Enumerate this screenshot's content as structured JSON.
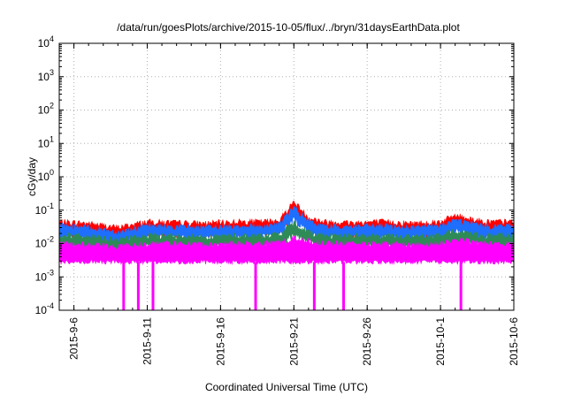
{
  "chart_data": {
    "type": "line",
    "title": "/data/run/goesPlots/archive/2015-10-05/flux/../bryn/31daysEarthData.plot",
    "xlabel": "Coordinated Universal Time (UTC)",
    "ylabel": "cGy/day",
    "yscale": "log",
    "ylim": [
      0.0001,
      10000
    ],
    "xlim": [
      "2015-09-05",
      "2015-10-06"
    ],
    "y_ticks": [
      {
        "value": 0.0001,
        "base": "10",
        "exp": "-4"
      },
      {
        "value": 0.001,
        "base": "10",
        "exp": "-3"
      },
      {
        "value": 0.01,
        "base": "10",
        "exp": "-2"
      },
      {
        "value": 0.1,
        "base": "10",
        "exp": "-1"
      },
      {
        "value": 1,
        "base": "10",
        "exp": "0"
      },
      {
        "value": 10,
        "base": "10",
        "exp": "1"
      },
      {
        "value": 100,
        "base": "10",
        "exp": "2"
      },
      {
        "value": 1000,
        "base": "10",
        "exp": "3"
      },
      {
        "value": 10000,
        "base": "10",
        "exp": "4"
      }
    ],
    "x_ticks": [
      {
        "date": "2015-09-06",
        "label": "2015-9-6"
      },
      {
        "date": "2015-09-11",
        "label": "2015-9-11"
      },
      {
        "date": "2015-09-16",
        "label": "2015-9-16"
      },
      {
        "date": "2015-09-21",
        "label": "2015-9-21"
      },
      {
        "date": "2015-09-26",
        "label": "2015-9-26"
      },
      {
        "date": "2015-10-01",
        "label": "2015-10-1"
      },
      {
        "date": "2015-10-06",
        "label": "2015-10-6"
      }
    ],
    "grid": true,
    "series": [
      {
        "color": "#ff0000",
        "x": [
          "2015-09-05",
          "2015-09-07",
          "2015-09-09",
          "2015-09-11",
          "2015-09-13",
          "2015-09-15",
          "2015-09-17",
          "2015-09-19",
          "2015-09-20",
          "2015-09-21",
          "2015-09-22",
          "2015-09-23",
          "2015-09-25",
          "2015-09-27",
          "2015-09-29",
          "2015-10-01",
          "2015-10-02",
          "2015-10-04",
          "2015-10-06"
        ],
        "values": [
          0.045,
          0.04,
          0.03,
          0.045,
          0.042,
          0.04,
          0.045,
          0.045,
          0.05,
          0.18,
          0.06,
          0.045,
          0.042,
          0.045,
          0.04,
          0.045,
          0.07,
          0.045,
          0.045
        ]
      },
      {
        "color": "#1e6fff",
        "x": [
          "2015-09-05",
          "2015-09-07",
          "2015-09-09",
          "2015-09-11",
          "2015-09-13",
          "2015-09-15",
          "2015-09-17",
          "2015-09-19",
          "2015-09-20",
          "2015-09-21",
          "2015-09-22",
          "2015-09-23",
          "2015-09-25",
          "2015-09-27",
          "2015-09-29",
          "2015-10-01",
          "2015-10-02",
          "2015-10-04",
          "2015-10-06"
        ],
        "values": [
          0.035,
          0.03,
          0.022,
          0.033,
          0.032,
          0.03,
          0.033,
          0.033,
          0.038,
          0.12,
          0.045,
          0.033,
          0.032,
          0.033,
          0.03,
          0.033,
          0.05,
          0.033,
          0.033
        ]
      },
      {
        "color": "#2e8b57",
        "x": [
          "2015-09-05",
          "2015-09-07",
          "2015-09-09",
          "2015-09-11",
          "2015-09-13",
          "2015-09-15",
          "2015-09-17",
          "2015-09-19",
          "2015-09-20",
          "2015-09-21",
          "2015-09-22",
          "2015-09-23",
          "2015-09-25",
          "2015-09-27",
          "2015-09-29",
          "2015-10-01",
          "2015-10-02",
          "2015-10-04",
          "2015-10-06"
        ],
        "values": [
          0.018,
          0.016,
          0.013,
          0.017,
          0.017,
          0.016,
          0.017,
          0.017,
          0.019,
          0.04,
          0.022,
          0.017,
          0.017,
          0.017,
          0.016,
          0.017,
          0.024,
          0.017,
          0.017
        ]
      },
      {
        "color": "#ff00ff",
        "x": [
          "2015-09-05",
          "2015-09-07",
          "2015-09-09",
          "2015-09-11",
          "2015-09-13",
          "2015-09-15",
          "2015-09-17",
          "2015-09-19",
          "2015-09-20",
          "2015-09-21",
          "2015-09-22",
          "2015-09-23",
          "2015-09-25",
          "2015-09-27",
          "2015-09-29",
          "2015-10-01",
          "2015-10-02",
          "2015-10-04",
          "2015-10-06"
        ],
        "values": [
          0.01,
          0.009,
          0.008,
          0.01,
          0.01,
          0.009,
          0.01,
          0.01,
          0.011,
          0.014,
          0.012,
          0.01,
          0.01,
          0.01,
          0.009,
          0.01,
          0.013,
          0.01,
          0.01
        ],
        "band_low": 0.0028,
        "dropouts": [
          "2015-09-09",
          "2015-09-10",
          "2015-09-11",
          "2015-09-18",
          "2015-09-22",
          "2015-09-24",
          "2015-10-02"
        ]
      }
    ]
  }
}
